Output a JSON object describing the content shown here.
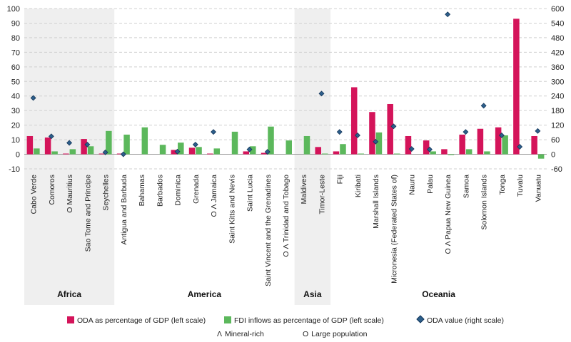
{
  "chart_data": {
    "type": "bar",
    "left_axis": {
      "min": -10,
      "max": 100,
      "step": 10
    },
    "right_axis": {
      "min": -60,
      "max": 600,
      "step": 60
    },
    "grid": true,
    "colors": {
      "oda": "#d4145a",
      "fdi": "#5cb85c",
      "value_marker": "#2d5f8b",
      "region_shade": "#efefef"
    },
    "regions": [
      {
        "name": "Africa",
        "count": 5,
        "shaded": true
      },
      {
        "name": "America",
        "count": 10,
        "shaded": false
      },
      {
        "name": "Asia",
        "count": 2,
        "shaded": true
      },
      {
        "name": "Oceania",
        "count": 12,
        "shaded": false
      }
    ],
    "categories": [
      "Cabo Verde",
      "Comoros",
      "O Mauritius",
      "Sao Tome and Principe",
      "Seychelles",
      "Antigua and Barbuda",
      "Bahamas",
      "Barbados",
      "Dominica",
      "Grenada",
      "O Λ Jamaica",
      "Saint Kitts and Nevis",
      "Saint Lucia",
      "Saint Vincent and the Grenadines",
      "O Λ Trinidad and Tobago",
      "Maldives",
      "Timor-Leste",
      "Fiji",
      "Kiribati",
      "Marshall Islands",
      "Micronesia (Federated States of)",
      "Nauru",
      "Palau",
      "O Λ Papua New Guinea",
      "Samoa",
      "Solomon Islands",
      "Tonga",
      "Tuvalu",
      "Vanuatu"
    ],
    "series": [
      {
        "name": "ODA as percentage of GDP (left scale)",
        "axis": "left",
        "kind": "bar",
        "values": [
          12.5,
          11.5,
          0.5,
          10.5,
          0.5,
          0.5,
          0,
          0,
          3,
          4.5,
          0.5,
          0,
          2,
          1,
          0,
          0,
          5,
          2,
          46,
          29,
          34.5,
          12.5,
          9.5,
          3.5,
          13.5,
          17.5,
          18.5,
          93,
          12.5
        ]
      },
      {
        "name": "FDI inflows as percentage of GDP (left scale)",
        "axis": "left",
        "kind": "bar",
        "values": [
          4,
          2,
          3.5,
          5.5,
          16,
          13.5,
          18.5,
          6.5,
          8,
          5,
          4,
          15.5,
          5.5,
          19,
          9.5,
          12.5,
          0.5,
          7,
          0.5,
          15,
          0.5,
          0,
          2,
          -0.5,
          3.5,
          2,
          13,
          0,
          -3
        ]
      },
      {
        "name": "ODA value (right scale)",
        "axis": "right",
        "kind": "marker",
        "values": [
          232,
          74,
          47,
          40,
          8,
          0,
          null,
          null,
          11,
          40,
          92,
          null,
          20,
          10,
          null,
          null,
          250,
          92,
          78,
          52,
          115,
          22,
          20,
          576,
          92,
          200,
          78,
          31,
          96
        ]
      }
    ],
    "legend": {
      "oda": "ODA as percentage of GDP (left scale)",
      "fdi": "FDI inflows as percentage of GDP (left scale)",
      "value": "ODA value (right scale)",
      "mineral_symbol": "Λ",
      "mineral": "Mineral-rich",
      "population_symbol": "O",
      "population": "Large population"
    }
  }
}
